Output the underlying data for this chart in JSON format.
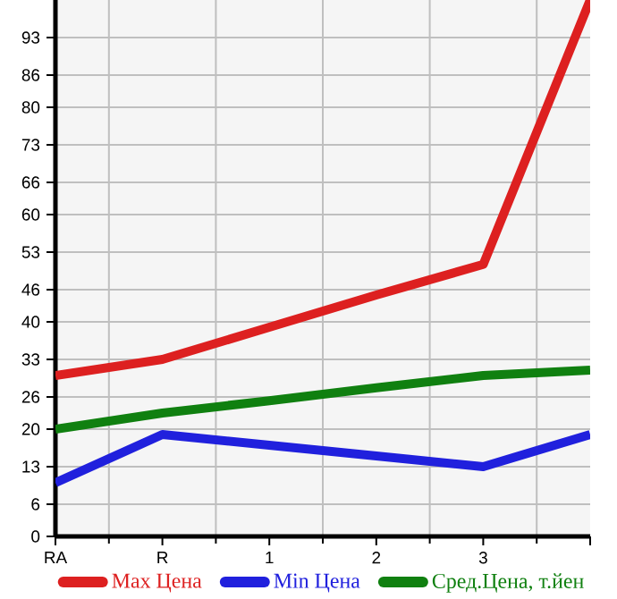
{
  "chart_data": {
    "type": "line",
    "categories": [
      "RA",
      "R",
      "1",
      "2",
      "3",
      null
    ],
    "series": [
      {
        "name": "Max Цена",
        "color": "#dd2020",
        "values": [
          30,
          33,
          39,
          45,
          50.7,
          100
        ]
      },
      {
        "name": "Min Цена",
        "color": "#2020dd",
        "values": [
          10,
          19,
          17,
          15,
          13,
          19
        ]
      },
      {
        "name": "Сред.Цена, т.йен",
        "color": "#108010",
        "values": [
          20,
          23,
          25.3,
          27.7,
          30,
          31
        ]
      }
    ],
    "ylim": [
      0,
      100
    ],
    "yticks": [
      0,
      6,
      13,
      20,
      26,
      33,
      40,
      46,
      53,
      60,
      66,
      73,
      80,
      86,
      93
    ],
    "grid": true,
    "legend": "bottom",
    "marker": "none",
    "line_style": "solid"
  }
}
